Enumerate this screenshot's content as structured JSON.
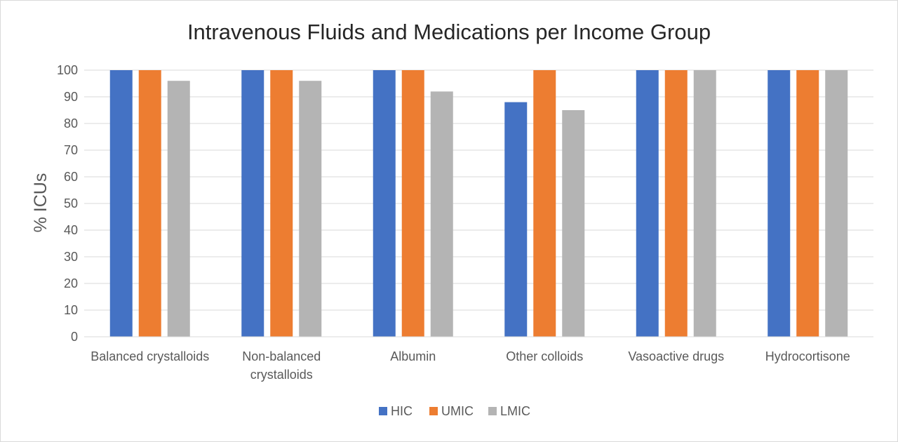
{
  "chart_data": {
    "type": "bar",
    "title": "Intravenous Fluids and Medications per Income Group",
    "ylabel": "% ICUs",
    "xlabel": "",
    "ylim": [
      0,
      100
    ],
    "yticks": [
      0,
      10,
      20,
      30,
      40,
      50,
      60,
      70,
      80,
      90,
      100
    ],
    "grid": true,
    "legend_position": "bottom",
    "categories": [
      [
        "Balanced crystalloids"
      ],
      [
        "Non-balanced",
        "crystalloids"
      ],
      [
        "Albumin"
      ],
      [
        "Other colloids"
      ],
      [
        "Vasoactive drugs"
      ],
      [
        "Hydrocortisone"
      ]
    ],
    "series": [
      {
        "name": "HIC",
        "color": "#4472c4",
        "values": [
          100,
          100,
          100,
          88,
          100,
          100
        ]
      },
      {
        "name": "UMIC",
        "color": "#ed7d31",
        "values": [
          100,
          100,
          100,
          100,
          100,
          100
        ]
      },
      {
        "name": "LMIC",
        "color": "#b4b4b4",
        "values": [
          96,
          96,
          92,
          85,
          100,
          100
        ]
      }
    ]
  }
}
